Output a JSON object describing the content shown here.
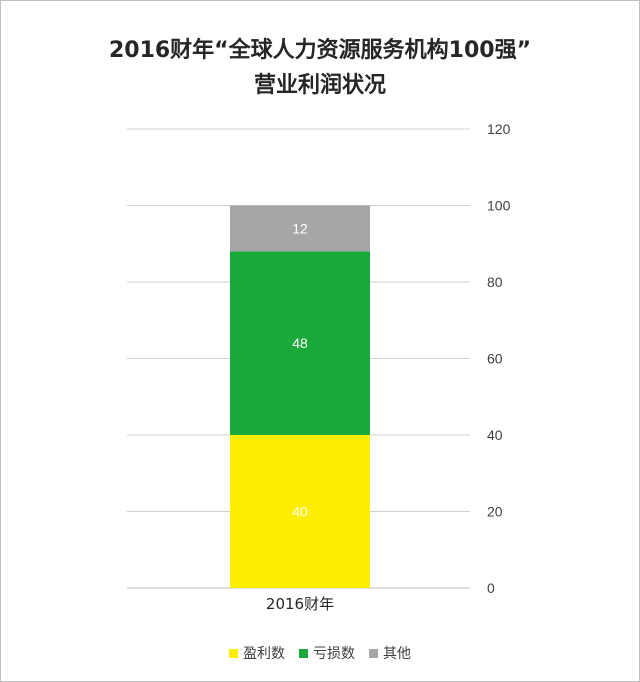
{
  "chart_data": {
    "type": "bar",
    "stacked": true,
    "title": "2016财年“全球人力资源服务机构100强”",
    "subtitle": "营业利润状况",
    "categories": [
      "2016财年"
    ],
    "series": [
      {
        "name": "盈利数",
        "values": [
          40
        ],
        "color": "#ffee00",
        "label_color": "#ffffff"
      },
      {
        "name": "亏损数",
        "values": [
          48
        ],
        "color": "#1aaa3c",
        "label_color": "#ffffff"
      },
      {
        "name": "其他",
        "values": [
          12
        ],
        "color": "#a6a6a6",
        "label_color": "#ffffff"
      }
    ],
    "yticks": [
      "0",
      "20",
      "40",
      "60",
      "80",
      "100",
      "120"
    ],
    "ylim": [
      0,
      120
    ],
    "y_axis_side": "right",
    "grid": true,
    "legend_position": "bottom"
  }
}
